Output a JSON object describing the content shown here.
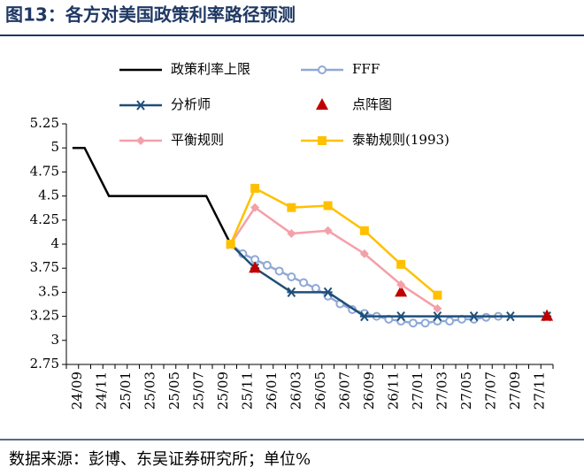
{
  "title": "图13：各方对美国政策利率路径预测",
  "source": "数据来源：彭博、东吴证券研究所；单位%",
  "chart_data": {
    "type": "line",
    "categories": [
      "24/09",
      "24/11",
      "25/01",
      "25/03",
      "25/05",
      "25/07",
      "25/09",
      "25/11",
      "26/01",
      "26/03",
      "26/05",
      "26/07",
      "26/09",
      "26/11",
      "27/01",
      "27/03",
      "27/05",
      "27/07",
      "27/09",
      "27/11"
    ],
    "ylim": [
      2.75,
      5.25
    ],
    "yticks": [
      2.75,
      3,
      3.25,
      3.5,
      3.75,
      4,
      4.25,
      4.5,
      4.75,
      5,
      5.25
    ],
    "grid": false,
    "series": [
      {
        "name": "政策利率上限",
        "color": "#000000",
        "marker": "none",
        "line": true,
        "x": [
          "24/09",
          "24/10",
          "24/11",
          "24/12",
          "25/01",
          "25/02",
          "25/03",
          "25/04",
          "25/05",
          "25/06",
          "25/07",
          "25/08",
          "25/09",
          "25/10"
        ],
        "values": [
          5,
          5,
          4.75,
          4.5,
          4.5,
          4.5,
          4.5,
          4.5,
          4.5,
          4.5,
          4.5,
          4.5,
          4.25,
          4
        ]
      },
      {
        "name": "FFF",
        "color": "#8fa9d6",
        "marker": "circle",
        "line": true,
        "x": [
          "25/10",
          "25/11",
          "25/12",
          "26/01",
          "26/02",
          "26/03",
          "26/04",
          "26/05",
          "26/06",
          "26/07",
          "26/08",
          "26/09",
          "26/10",
          "26/11",
          "26/12",
          "27/01",
          "27/02",
          "27/03",
          "27/04",
          "27/05",
          "27/06",
          "27/07",
          "27/08"
        ],
        "values": [
          4,
          3.9,
          3.84,
          3.78,
          3.72,
          3.66,
          3.6,
          3.54,
          3.46,
          3.38,
          3.32,
          3.28,
          3.25,
          3.22,
          3.2,
          3.18,
          3.18,
          3.2,
          3.2,
          3.22,
          3.22,
          3.24,
          3.25
        ]
      },
      {
        "name": "分析师",
        "color": "#1f4e79",
        "marker": "star",
        "line": true,
        "x": [
          "25/10",
          "25/12",
          "26/03",
          "26/06",
          "26/09",
          "26/12",
          "27/03",
          "27/06",
          "27/09",
          "27/12"
        ],
        "values": [
          4,
          3.75,
          3.5,
          3.5,
          3.25,
          3.25,
          3.25,
          3.25,
          3.25,
          3.25
        ]
      },
      {
        "name": "点阵图",
        "color": "#c00000",
        "marker": "triangle",
        "line": false,
        "x": [
          "25/12",
          "26/12",
          "27/12"
        ],
        "values": [
          3.75,
          3.5,
          3.25
        ]
      },
      {
        "name": "平衡规则",
        "color": "#f4a0a8",
        "marker": "diamond",
        "line": true,
        "x": [
          "25/10",
          "25/12",
          "26/03",
          "26/06",
          "26/09",
          "26/12",
          "27/03"
        ],
        "values": [
          4,
          4.38,
          4.11,
          4.14,
          3.9,
          3.58,
          3.33
        ]
      },
      {
        "name": "泰勒规则(1993)",
        "color": "#ffc000",
        "marker": "square",
        "line": true,
        "x": [
          "25/10",
          "25/12",
          "26/03",
          "26/06",
          "26/09",
          "26/12",
          "27/03"
        ],
        "values": [
          4,
          4.58,
          4.38,
          4.4,
          4.14,
          3.79,
          3.47
        ]
      }
    ]
  }
}
